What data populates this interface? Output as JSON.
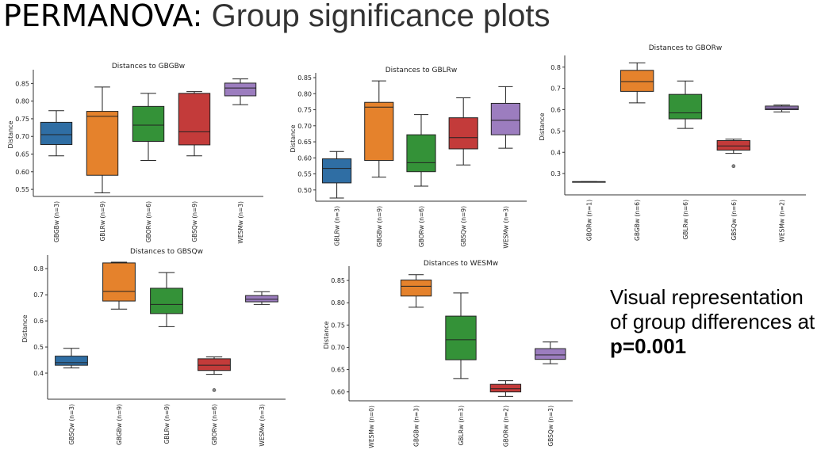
{
  "title": {
    "part1": "PERMANOVA:",
    "part2": "Group significance plots"
  },
  "caption": {
    "line1": "Visual representation",
    "line2": "of group differences at",
    "line3": "p=0.001"
  },
  "colors": {
    "GBGBw": "#e5822c",
    "GBLRw": "#349238",
    "GBORw": "#c33b3a",
    "GBSQw": "#9c7dbf",
    "WESMw": "#2f6ea4"
  },
  "chart_data": [
    {
      "type": "box",
      "title": "Distances to GBGBw",
      "ylabel": "Distance",
      "ylim": [
        0.53,
        0.88
      ],
      "yticks": [
        "0.55",
        "0.60",
        "0.65",
        "0.70",
        "0.75",
        "0.80",
        "0.85"
      ],
      "categories": [
        "GBGBw (n=3)",
        "GBLRw (n=9)",
        "GBORw (n=6)",
        "GBSQw (n=9)",
        "WESMw (n=3)"
      ],
      "colors": [
        "#2f6ea4",
        "#e5822c",
        "#349238",
        "#c33b3a",
        "#9c7dbf"
      ],
      "boxes": [
        {
          "wlo": 0.645,
          "q1": 0.677,
          "med": 0.705,
          "q3": 0.74,
          "whi": 0.773,
          "out": []
        },
        {
          "wlo": 0.54,
          "q1": 0.59,
          "med": 0.757,
          "q3": 0.771,
          "whi": 0.84,
          "out": []
        },
        {
          "wlo": 0.632,
          "q1": 0.686,
          "med": 0.732,
          "q3": 0.785,
          "whi": 0.822,
          "out": []
        },
        {
          "wlo": 0.645,
          "q1": 0.676,
          "med": 0.713,
          "q3": 0.822,
          "whi": 0.827,
          "out": []
        },
        {
          "wlo": 0.79,
          "q1": 0.815,
          "med": 0.837,
          "q3": 0.851,
          "whi": 0.863,
          "out": []
        }
      ]
    },
    {
      "type": "box",
      "title": "Distances to GBLRw",
      "ylabel": "Distance",
      "ylim": [
        0.465,
        0.855
      ],
      "yticks": [
        "0.50",
        "0.55",
        "0.60",
        "0.65",
        "0.70",
        "0.75",
        "0.80",
        "0.85"
      ],
      "categories": [
        "GBLRw (n=3)",
        "GBGBw (n=9)",
        "GBORw (n=6)",
        "GBSQw (n=9)",
        "WESMw (n=3)"
      ],
      "colors": [
        "#2f6ea4",
        "#e5822c",
        "#349238",
        "#c33b3a",
        "#9c7dbf"
      ],
      "boxes": [
        {
          "wlo": 0.475,
          "q1": 0.522,
          "med": 0.567,
          "q3": 0.597,
          "whi": 0.62,
          "out": []
        },
        {
          "wlo": 0.54,
          "q1": 0.592,
          "med": 0.758,
          "q3": 0.773,
          "whi": 0.84,
          "out": []
        },
        {
          "wlo": 0.512,
          "q1": 0.557,
          "med": 0.585,
          "q3": 0.672,
          "whi": 0.735,
          "out": []
        },
        {
          "wlo": 0.578,
          "q1": 0.628,
          "med": 0.663,
          "q3": 0.725,
          "whi": 0.787,
          "out": []
        },
        {
          "wlo": 0.63,
          "q1": 0.672,
          "med": 0.717,
          "q3": 0.77,
          "whi": 0.822,
          "out": []
        }
      ]
    },
    {
      "type": "box",
      "title": "Distances to GBORw",
      "ylabel": "Distance",
      "ylim": [
        0.2,
        0.84
      ],
      "yticks": [
        "0.3",
        "0.4",
        "0.5",
        "0.6",
        "0.7",
        "0.8"
      ],
      "categories": [
        "GBORw (n=1)",
        "GBGBw (n=6)",
        "GBLRw (n=6)",
        "GBSQw (n=6)",
        "WESMw (n=2)"
      ],
      "colors": [
        "#2f6ea4",
        "#e5822c",
        "#349238",
        "#c33b3a",
        "#9c7dbf"
      ],
      "boxes": [
        {
          "wlo": 0.262,
          "q1": 0.262,
          "med": 0.262,
          "q3": 0.262,
          "whi": 0.262,
          "out": []
        },
        {
          "wlo": 0.632,
          "q1": 0.686,
          "med": 0.732,
          "q3": 0.785,
          "whi": 0.82,
          "out": []
        },
        {
          "wlo": 0.512,
          "q1": 0.557,
          "med": 0.585,
          "q3": 0.672,
          "whi": 0.735,
          "out": []
        },
        {
          "wlo": 0.395,
          "q1": 0.41,
          "med": 0.43,
          "q3": 0.455,
          "whi": 0.462,
          "out": [
            0.335
          ]
        },
        {
          "wlo": 0.59,
          "q1": 0.6,
          "med": 0.607,
          "q3": 0.617,
          "whi": 0.622,
          "out": []
        }
      ]
    },
    {
      "type": "box",
      "title": "Distances to GBSQw",
      "ylabel": "Distance",
      "ylim": [
        0.3,
        0.84
      ],
      "yticks": [
        "0.4",
        "0.5",
        "0.6",
        "0.7",
        "0.8"
      ],
      "categories": [
        "GBSQw (n=3)",
        "GBGBw (n=9)",
        "GBLRw (n=9)",
        "GBORw (n=6)",
        "WESMw (n=3)"
      ],
      "colors": [
        "#2f6ea4",
        "#e5822c",
        "#349238",
        "#c33b3a",
        "#9c7dbf"
      ],
      "boxes": [
        {
          "wlo": 0.42,
          "q1": 0.43,
          "med": 0.44,
          "q3": 0.465,
          "whi": 0.495,
          "out": []
        },
        {
          "wlo": 0.645,
          "q1": 0.676,
          "med": 0.713,
          "q3": 0.822,
          "whi": 0.825,
          "out": []
        },
        {
          "wlo": 0.578,
          "q1": 0.628,
          "med": 0.663,
          "q3": 0.725,
          "whi": 0.785,
          "out": []
        },
        {
          "wlo": 0.395,
          "q1": 0.41,
          "med": 0.43,
          "q3": 0.455,
          "whi": 0.462,
          "out": [
            0.335
          ]
        },
        {
          "wlo": 0.663,
          "q1": 0.673,
          "med": 0.683,
          "q3": 0.697,
          "whi": 0.712,
          "out": []
        }
      ]
    },
    {
      "type": "box",
      "title": "Distances to WESMw",
      "ylabel": "Distance",
      "ylim": [
        0.58,
        0.875
      ],
      "yticks": [
        "0.60",
        "0.65",
        "0.70",
        "0.75",
        "0.80",
        "0.85"
      ],
      "categories": [
        "WESMw (n=0)",
        "GBGBw (n=3)",
        "GBLRw (n=3)",
        "GBORw (n=2)",
        "GBSQw (n=3)"
      ],
      "colors": [
        "#2f6ea4",
        "#e5822c",
        "#349238",
        "#c33b3a",
        "#9c7dbf"
      ],
      "boxes": [
        null,
        {
          "wlo": 0.79,
          "q1": 0.815,
          "med": 0.837,
          "q3": 0.851,
          "whi": 0.863,
          "out": []
        },
        {
          "wlo": 0.63,
          "q1": 0.672,
          "med": 0.717,
          "q3": 0.77,
          "whi": 0.822,
          "out": []
        },
        {
          "wlo": 0.59,
          "q1": 0.6,
          "med": 0.607,
          "q3": 0.617,
          "whi": 0.625,
          "out": []
        },
        {
          "wlo": 0.663,
          "q1": 0.673,
          "med": 0.683,
          "q3": 0.697,
          "whi": 0.712,
          "out": []
        }
      ]
    }
  ]
}
